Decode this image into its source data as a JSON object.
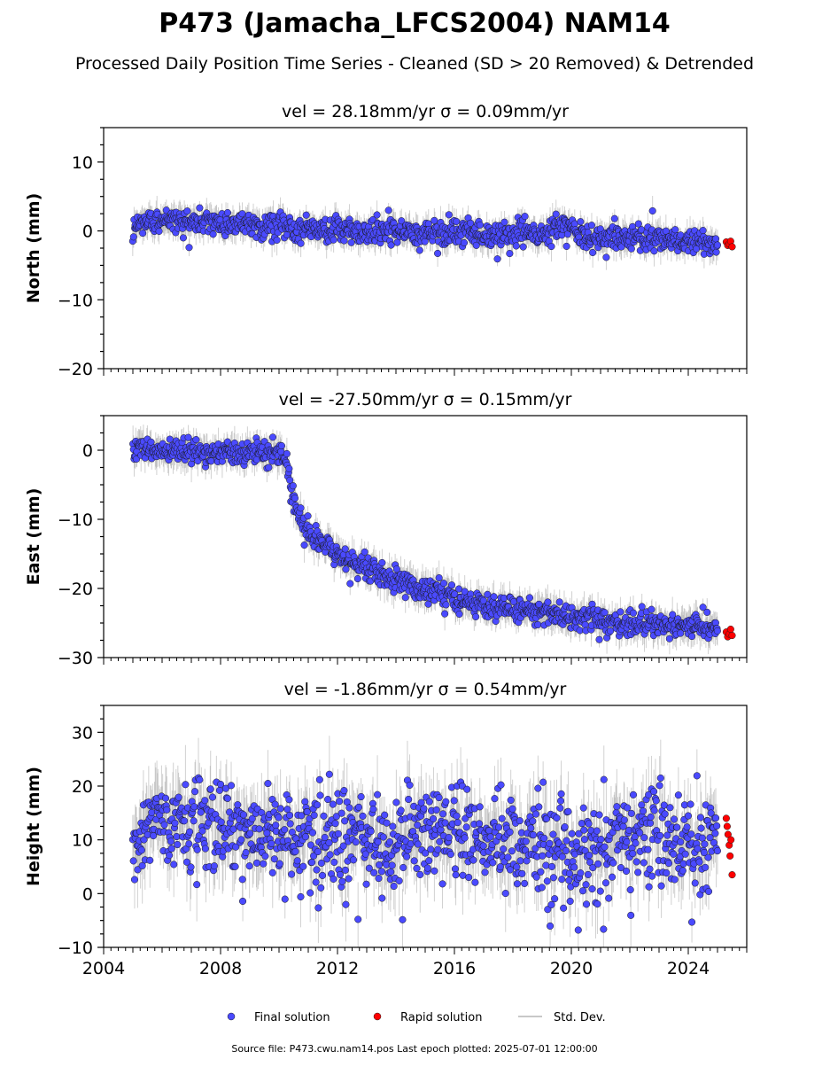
{
  "title": "P473 (Jamacha_LFCS2004) NAM14",
  "subtitle": "Processed Daily Position Time Series - Cleaned (SD > 20 Removed) & Detrended",
  "footer": "Source file: P473.cwu.nam14.pos  Last epoch plotted: 2025-07-01 12:00:00",
  "legend": {
    "final": "Final solution",
    "rapid": "Rapid solution",
    "stddev": "Std. Dev."
  },
  "colors": {
    "final": "#4a4aff",
    "rapid": "#ff0000",
    "stddev": "#9a9a9a"
  },
  "chart_data": [
    {
      "type": "scatter",
      "panel_title": "vel = 28.18mm/yr   σ = 0.09mm/yr",
      "ylabel": "North (mm)",
      "xlim": [
        2004.0,
        2026.0
      ],
      "ylim": [
        -20,
        15
      ],
      "yticks": [
        -20,
        -10,
        0,
        10
      ],
      "xticks": [
        2004,
        2008,
        2012,
        2016,
        2020,
        2024
      ],
      "series": [
        {
          "kind": "final",
          "x": [
            2005.0,
            2005.5,
            2006.0,
            2006.5,
            2007.0,
            2007.5,
            2008.0,
            2008.5,
            2009.0,
            2009.5,
            2010.0,
            2010.5,
            2011.0,
            2011.5,
            2012.0,
            2012.5,
            2013.0,
            2013.5,
            2014.0,
            2014.5,
            2015.0,
            2015.5,
            2016.0,
            2016.5,
            2017.0,
            2017.5,
            2018.0,
            2018.5,
            2019.0,
            2019.5,
            2020.0,
            2020.5,
            2021.0,
            2021.5,
            2022.0,
            2022.5,
            2023.0,
            2023.5,
            2024.0,
            2024.5,
            2025.0
          ],
          "y": [
            1.0,
            1.3,
            1.5,
            1.4,
            1.2,
            1.3,
            1.2,
            1.0,
            1.0,
            0.8,
            0.6,
            0.5,
            0.4,
            0.3,
            0.1,
            0.0,
            -0.1,
            -0.1,
            -0.2,
            -0.2,
            -0.3,
            -0.3,
            -0.4,
            -0.4,
            -0.5,
            -0.6,
            -0.6,
            -0.7,
            -0.8,
            0.8,
            0.2,
            -1.0,
            -1.1,
            -1.0,
            -0.9,
            -1.0,
            -1.1,
            -1.3,
            -1.5,
            -1.6,
            -1.8
          ]
        },
        {
          "kind": "rapid",
          "x": [
            2025.3,
            2025.35,
            2025.4,
            2025.45,
            2025.5
          ],
          "y": [
            -1.6,
            -2.1,
            -1.9,
            -1.5,
            -2.3
          ]
        }
      ]
    },
    {
      "type": "scatter",
      "panel_title": "vel = -27.50mm/yr   σ = 0.15mm/yr",
      "ylabel": "East (mm)",
      "xlim": [
        2004.0,
        2026.0
      ],
      "ylim": [
        -30,
        5
      ],
      "yticks": [
        -30,
        -20,
        -10,
        0
      ],
      "xticks": [
        2004,
        2008,
        2012,
        2016,
        2020,
        2024
      ],
      "series": [
        {
          "kind": "final",
          "x": [
            2005.0,
            2005.5,
            2006.0,
            2006.5,
            2007.0,
            2007.5,
            2008.0,
            2008.5,
            2009.0,
            2009.5,
            2010.0,
            2010.25,
            2010.4,
            2010.6,
            2010.8,
            2011.0,
            2011.5,
            2012.0,
            2012.5,
            2013.0,
            2013.5,
            2014.0,
            2014.5,
            2015.0,
            2015.5,
            2016.0,
            2016.5,
            2017.0,
            2017.5,
            2018.0,
            2018.5,
            2019.0,
            2019.5,
            2020.0,
            2020.5,
            2021.0,
            2021.5,
            2022.0,
            2022.5,
            2023.0,
            2023.5,
            2024.0,
            2024.5,
            2025.0
          ],
          "y": [
            0.0,
            0.3,
            0.0,
            -0.3,
            -0.2,
            -0.4,
            -0.5,
            -0.3,
            -0.4,
            -0.6,
            -0.5,
            -0.8,
            -5.5,
            -8.5,
            -10.5,
            -12.0,
            -13.5,
            -15.0,
            -16.0,
            -17.0,
            -17.8,
            -18.8,
            -19.5,
            -20.3,
            -20.8,
            -21.4,
            -22.0,
            -22.4,
            -22.8,
            -23.1,
            -23.3,
            -23.5,
            -23.7,
            -24.0,
            -24.3,
            -24.6,
            -24.8,
            -25.0,
            -25.0,
            -25.2,
            -25.4,
            -25.5,
            -25.7,
            -26.0
          ]
        },
        {
          "kind": "rapid",
          "x": [
            2025.3,
            2025.35,
            2025.4,
            2025.45,
            2025.5
          ],
          "y": [
            -26.3,
            -27.0,
            -26.6,
            -25.9,
            -26.8
          ]
        }
      ]
    },
    {
      "type": "scatter",
      "panel_title": "vel = -1.86mm/yr   σ = 0.54mm/yr",
      "ylabel": "Height (mm)",
      "xlim": [
        2004.0,
        2026.0
      ],
      "ylim": [
        -10,
        35
      ],
      "yticks": [
        -10,
        0,
        10,
        20,
        30
      ],
      "xticks": [
        2004,
        2008,
        2012,
        2016,
        2020,
        2024
      ],
      "series": [
        {
          "kind": "final",
          "x": [
            2005.0,
            2005.5,
            2006.0,
            2006.5,
            2007.0,
            2007.5,
            2008.0,
            2008.5,
            2009.0,
            2009.5,
            2010.0,
            2010.5,
            2011.0,
            2011.5,
            2012.0,
            2012.5,
            2013.0,
            2013.5,
            2014.0,
            2014.5,
            2015.0,
            2015.5,
            2016.0,
            2016.5,
            2017.0,
            2017.5,
            2018.0,
            2018.5,
            2019.0,
            2019.5,
            2020.0,
            2020.5,
            2021.0,
            2021.5,
            2022.0,
            2022.5,
            2023.0,
            2023.5,
            2024.0,
            2024.5,
            2025.0
          ],
          "y": [
            8.0,
            12.0,
            14.0,
            15.0,
            13.0,
            12.0,
            13.0,
            12.0,
            11.0,
            10.0,
            11.0,
            10.0,
            10.0,
            9.0,
            10.0,
            11.0,
            10.0,
            9.0,
            10.0,
            10.0,
            11.0,
            12.0,
            13.0,
            10.0,
            9.0,
            10.0,
            9.0,
            10.0,
            9.0,
            9.0,
            7.0,
            8.0,
            9.0,
            10.0,
            10.0,
            12.0,
            13.0,
            10.0,
            9.0,
            10.0,
            11.0
          ]
        },
        {
          "kind": "rapid",
          "x": [
            2025.3,
            2025.33,
            2025.36,
            2025.4,
            2025.43,
            2025.46,
            2025.5
          ],
          "y": [
            14.0,
            12.5,
            11.0,
            9.0,
            7.0,
            10.0,
            3.5
          ]
        }
      ]
    }
  ]
}
